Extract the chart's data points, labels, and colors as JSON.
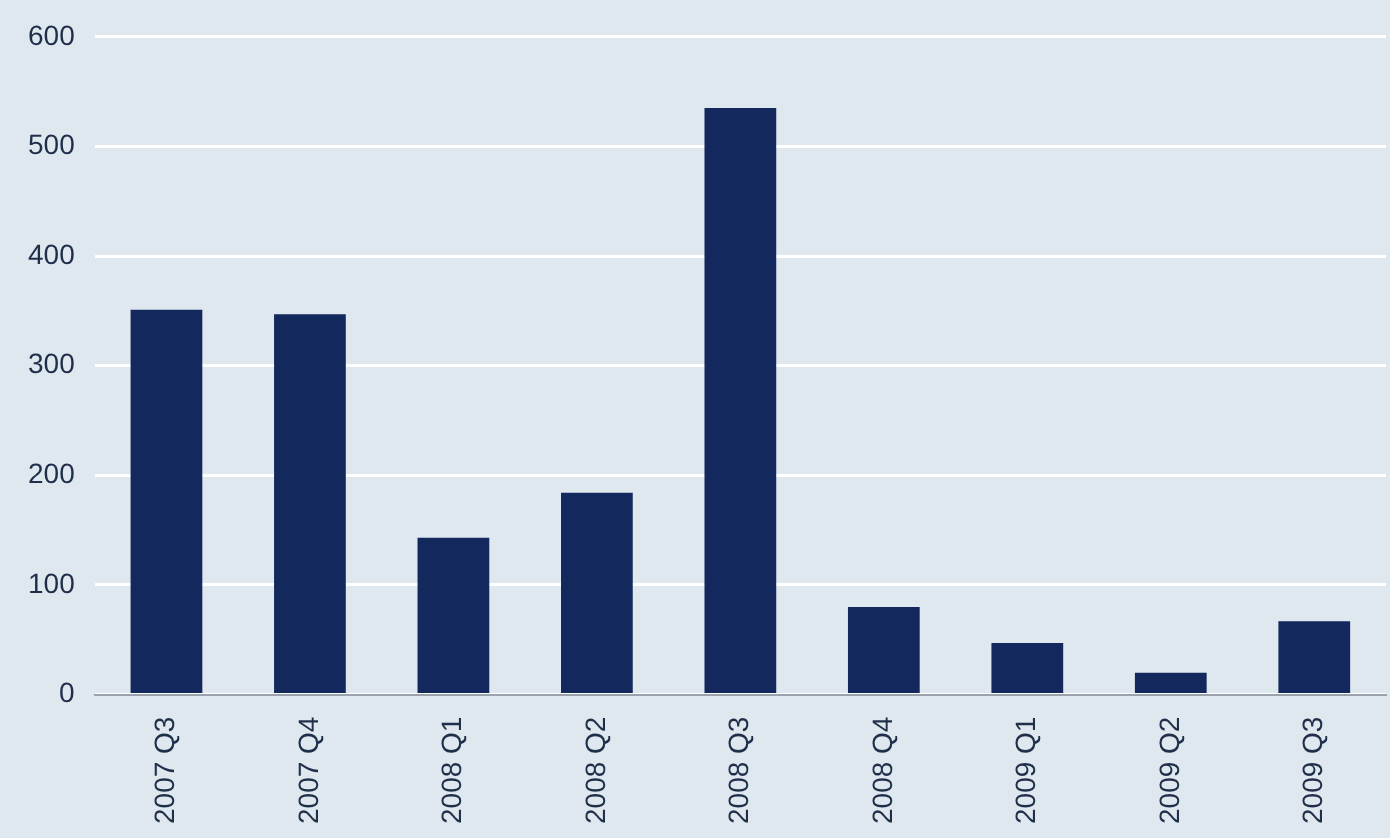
{
  "chart_data": {
    "type": "bar",
    "categories": [
      "2007 Q3",
      "2007 Q4",
      "2008 Q1",
      "2008 Q2",
      "2008 Q3",
      "2008 Q4",
      "2009 Q1",
      "2009 Q2",
      "2009 Q3"
    ],
    "values": [
      351,
      347,
      143,
      184,
      535,
      80,
      47,
      20,
      67
    ],
    "color": "#13285c",
    "ylim": [
      0,
      600
    ],
    "yticks": [
      0,
      100,
      200,
      300,
      400,
      500,
      600
    ],
    "grid": "y",
    "legend": false
  }
}
